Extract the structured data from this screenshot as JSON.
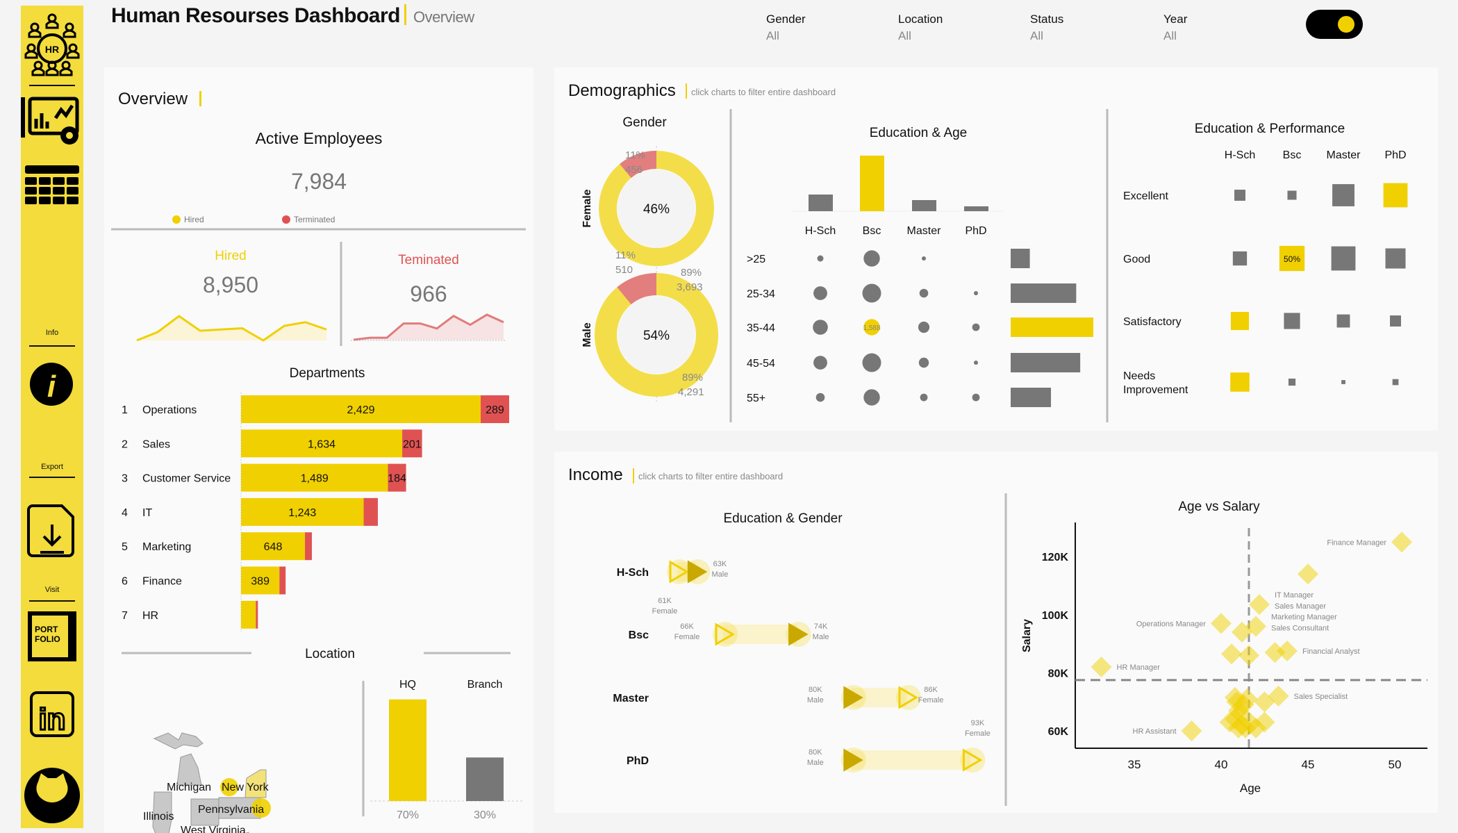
{
  "header": {
    "title": "Human Resourses Dashboard",
    "subtitle": "Overview"
  },
  "filters": [
    {
      "label": "Gender",
      "value": "All"
    },
    {
      "label": "Location",
      "value": "All"
    },
    {
      "label": "Status",
      "value": "All"
    },
    {
      "label": "Year",
      "value": "All"
    }
  ],
  "sidebar": {
    "info_label": "Info",
    "export_label": "Export",
    "visit_label": "Visit",
    "portfolio_text": [
      "PORT",
      "FOLIO"
    ],
    "logo_text": "HR"
  },
  "colors": {
    "yellow": "#f0d000",
    "sidebar": "#f3dc3b",
    "red": "#e05252",
    "pink": "#e27e7e",
    "grey": "#777777",
    "dark_yellow": "#c9a900"
  },
  "overview": {
    "title": "Overview",
    "active_title": "Active Employees",
    "active_value": "7,984",
    "legend_hired": "Hired",
    "legend_terminated": "Terminated",
    "hired_label": "Hired",
    "hired_value": "8,950",
    "terminated_label": "Teminated",
    "terminated_value": "966",
    "hired_trend": [
      0,
      35,
      100,
      40,
      45,
      50,
      0,
      60,
      75,
      45
    ],
    "terminated_trend": [
      0,
      8,
      8,
      65,
      65,
      45,
      95,
      60,
      100,
      70
    ]
  },
  "departments": {
    "title": "Departments",
    "rows": [
      {
        "rank": "1",
        "name": "Operations",
        "hired": 2429,
        "terminated": 289,
        "hired_label": "2,429",
        "terminated_label": "289"
      },
      {
        "rank": "2",
        "name": "Sales",
        "hired": 1634,
        "terminated": 201,
        "hired_label": "1,634",
        "terminated_label": "201"
      },
      {
        "rank": "3",
        "name": "Customer Service",
        "hired": 1489,
        "terminated": 184,
        "hired_label": "1,489",
        "terminated_label": "184"
      },
      {
        "rank": "4",
        "name": "IT",
        "hired": 1243,
        "terminated": 144,
        "hired_label": "1,243",
        "terminated_label": ""
      },
      {
        "rank": "5",
        "name": "Marketing",
        "hired": 648,
        "terminated": 70,
        "hired_label": "648",
        "terminated_label": ""
      },
      {
        "rank": "6",
        "name": "Finance",
        "hired": 389,
        "terminated": 63,
        "hired_label": "389",
        "terminated_label": ""
      },
      {
        "rank": "7",
        "name": "HR",
        "hired": 150,
        "terminated": 21,
        "hired_label": "",
        "terminated_label": ""
      }
    ]
  },
  "location": {
    "title": "Location",
    "states": [
      "Michigan",
      "New York",
      "Pennsylvania",
      "Illinois",
      "West Virginia"
    ],
    "bars": [
      {
        "label": "HQ",
        "percent": 70,
        "percent_label": "70%"
      },
      {
        "label": "Branch",
        "percent": 30,
        "percent_label": "30%"
      }
    ]
  },
  "demographics": {
    "title": "Demographics",
    "hint": "click charts to filter entire dashboard",
    "gender": {
      "title": "Gender",
      "female": {
        "label": "Female",
        "share": "46%",
        "terminated_pct": 11,
        "terminated_pct_label": "11%",
        "terminated_count": "456",
        "active_pct_label": "89%",
        "active_count": "3,693"
      },
      "male": {
        "label": "Male",
        "share": "54%",
        "terminated_pct": 11,
        "terminated_pct_label": "11%",
        "terminated_count": "510",
        "active_pct_label": "89%",
        "active_count": "4,291"
      }
    },
    "education_age": {
      "title": "Education & Age",
      "education": [
        "H-Sch",
        "Bsc",
        "Master",
        "PhD"
      ],
      "education_totals": [
        1200,
        4000,
        800,
        350
      ],
      "age_groups": [
        ">25",
        "25-34",
        "35-44",
        "45-54",
        "55+"
      ],
      "age_totals": [
        380,
        1300,
        1640,
        1380,
        800
      ],
      "matrix": [
        [
          235,
          1590,
          85,
          0
        ],
        [
          1140,
          2115,
          460,
          40
        ],
        [
          1355,
          1588,
          760,
          340
        ],
        [
          1140,
          2115,
          600,
          85
        ],
        [
          460,
          1590,
          340,
          340
        ]
      ],
      "highlight_label": "1,588"
    },
    "education_performance": {
      "title": "Education & Performance",
      "columns": [
        "H-Sch",
        "Bsc",
        "Master",
        "PhD"
      ],
      "rows": [
        {
          "label": "Excellent",
          "values": [
            121,
            81,
            484,
            576
          ],
          "highlight": [
            false,
            false,
            false,
            true
          ]
        },
        {
          "label": "Good",
          "values": [
            196,
            625,
            576,
            400
          ],
          "highlight": [
            false,
            true,
            false,
            false
          ]
        },
        {
          "label": "Satisfactory",
          "values": [
            324,
            256,
            169,
            121
          ],
          "highlight": [
            true,
            false,
            false,
            false
          ]
        },
        {
          "label": "Needs Improvement",
          "label_lines": [
            "Needs",
            "Improvement"
          ],
          "values": [
            361,
            49,
            16,
            36
          ],
          "highlight": [
            true,
            false,
            false,
            false
          ]
        }
      ],
      "highlight_label": "50%"
    }
  },
  "income": {
    "title": "Income",
    "hint": "click charts to filter entire dashboard",
    "education_gender": {
      "title": "Education & Gender",
      "rows": [
        {
          "label": "H-Sch",
          "female": 61,
          "male": 63,
          "female_label": "61K",
          "male_label": "63K"
        },
        {
          "label": "Bsc",
          "female": 66,
          "male": 74,
          "female_label": "66K",
          "male_label": "74K"
        },
        {
          "label": "Master",
          "female": 86,
          "male": 80,
          "female_label": "86K",
          "male_label": "80K"
        },
        {
          "label": "PhD",
          "female": 93,
          "male": 80,
          "female_label": "93K",
          "male_label": "80K"
        }
      ],
      "female_text": "Female",
      "male_text": "Male"
    }
  },
  "chart_data": {
    "type": "scatter",
    "title": "Age vs Salary",
    "xlabel": "Age",
    "ylabel": "Salary",
    "xlim": [
      31.9,
      52.3
    ],
    "ylim": [
      55,
      135
    ],
    "xticks": [
      35,
      40,
      45,
      50
    ],
    "yticks": [
      60,
      80,
      100,
      120
    ],
    "ytick_labels": [
      "60K",
      "80K",
      "100K",
      "120K"
    ],
    "reference_lines": {
      "age": 41.6,
      "salary": 77.5
    },
    "points": [
      {
        "age": 50.4,
        "salary": 125,
        "labels": [
          "Finance Manager"
        ],
        "side": "left"
      },
      {
        "age": 45.0,
        "salary": 114,
        "labels": [],
        "side": ""
      },
      {
        "age": 42.2,
        "salary": 103.5,
        "labels": [
          "IT Manager",
          "Sales Manager"
        ],
        "side": "right"
      },
      {
        "age": 40.0,
        "salary": 97,
        "labels": [
          "Operations Manager"
        ],
        "side": "left"
      },
      {
        "age": 42.0,
        "salary": 96,
        "labels": [
          "Marketing Manager",
          "Sales Consultant"
        ],
        "side": "right"
      },
      {
        "age": 41.2,
        "salary": 94,
        "labels": [],
        "side": ""
      },
      {
        "age": 40.6,
        "salary": 86.5,
        "labels": [],
        "side": ""
      },
      {
        "age": 41.6,
        "salary": 86,
        "labels": [],
        "side": ""
      },
      {
        "age": 43.1,
        "salary": 87,
        "labels": [],
        "side": ""
      },
      {
        "age": 43.8,
        "salary": 87.5,
        "labels": [
          "Financial Analyst"
        ],
        "side": "right"
      },
      {
        "age": 33.1,
        "salary": 82,
        "labels": [
          "HR Manager"
        ],
        "side": "right"
      },
      {
        "age": 43.3,
        "salary": 72,
        "labels": [
          "Sales Specialist"
        ],
        "side": "right"
      },
      {
        "age": 42.5,
        "salary": 70,
        "labels": [],
        "side": ""
      },
      {
        "age": 41.5,
        "salary": 71,
        "labels": [],
        "side": ""
      },
      {
        "age": 40.8,
        "salary": 71.5,
        "labels": [],
        "side": ""
      },
      {
        "age": 40.9,
        "salary": 70,
        "labels": [],
        "side": ""
      },
      {
        "age": 41.3,
        "salary": 69,
        "labels": [],
        "side": ""
      },
      {
        "age": 41.0,
        "salary": 67,
        "labels": [],
        "side": ""
      },
      {
        "age": 41.1,
        "salary": 66,
        "labels": [],
        "side": ""
      },
      {
        "age": 40.5,
        "salary": 63,
        "labels": [],
        "side": ""
      },
      {
        "age": 40.8,
        "salary": 64,
        "labels": [],
        "side": ""
      },
      {
        "age": 41.2,
        "salary": 62,
        "labels": [],
        "side": ""
      },
      {
        "age": 41.0,
        "salary": 61,
        "labels": [],
        "side": ""
      },
      {
        "age": 41.4,
        "salary": 61,
        "labels": [],
        "side": ""
      },
      {
        "age": 42.0,
        "salary": 61,
        "labels": [],
        "side": ""
      },
      {
        "age": 42.5,
        "salary": 63,
        "labels": [],
        "side": ""
      },
      {
        "age": 41.7,
        "salary": 62.5,
        "labels": [],
        "side": ""
      },
      {
        "age": 38.3,
        "salary": 60,
        "labels": [
          "HR Assistant"
        ],
        "side": "left"
      }
    ]
  }
}
